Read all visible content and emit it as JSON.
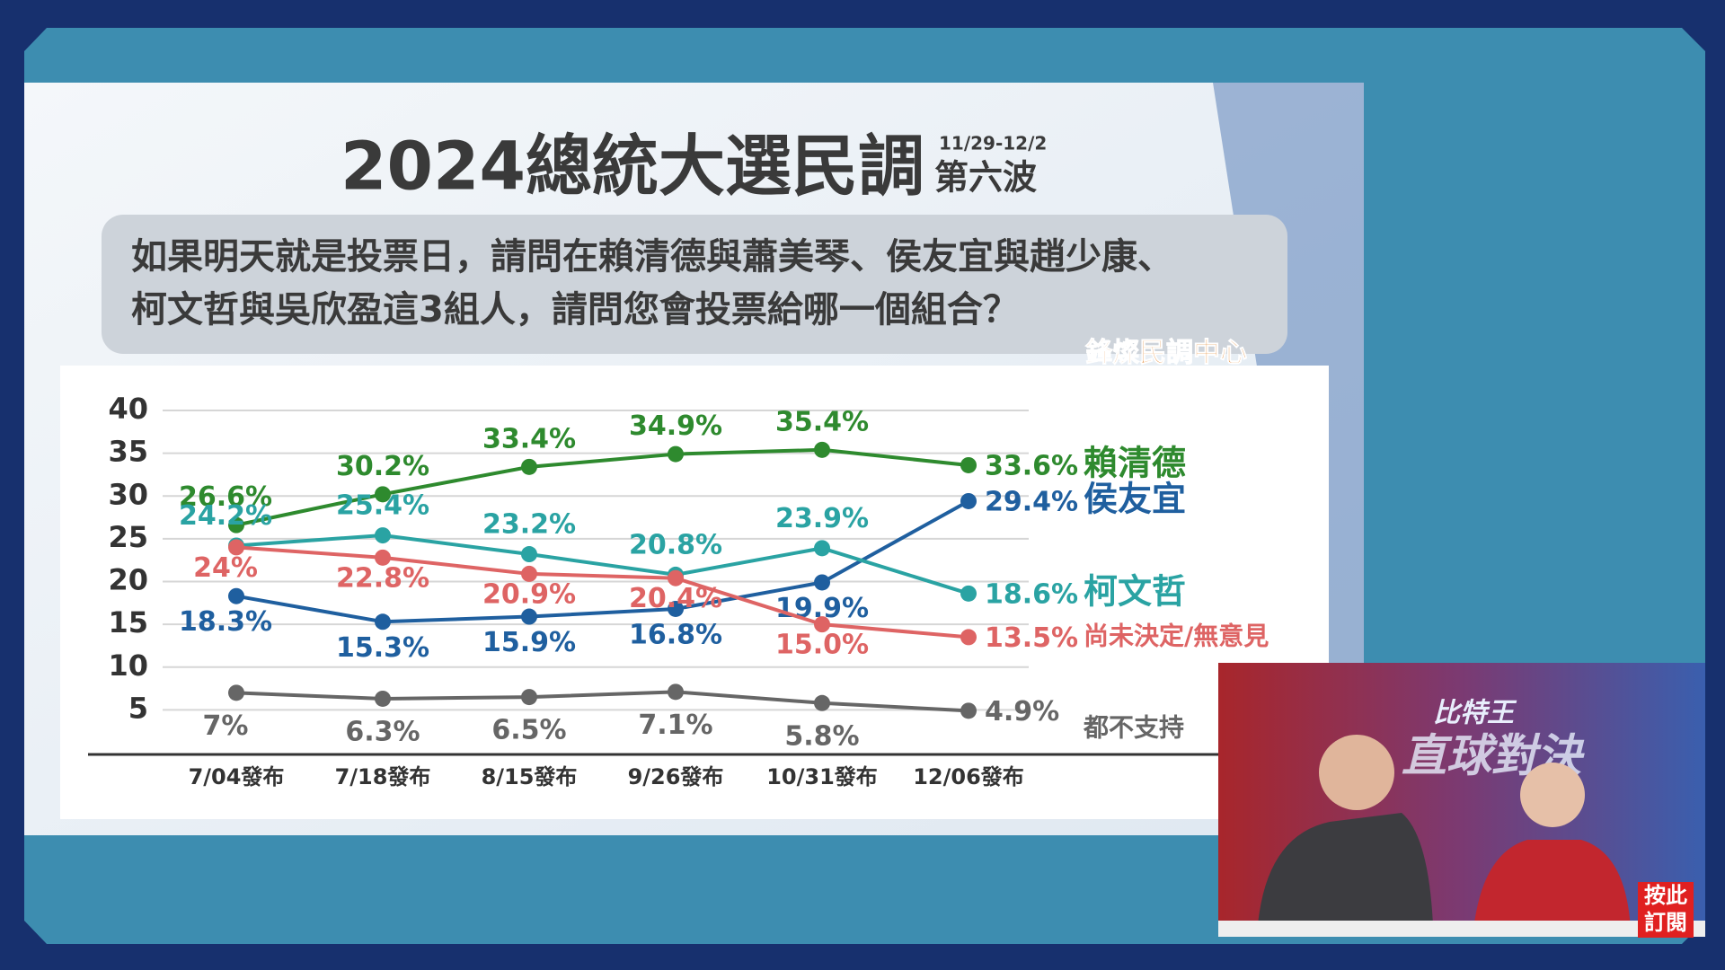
{
  "chart_data": {
    "type": "line",
    "title": "2024總統大選民調",
    "date_range": "11/29-12/2",
    "wave": "第六波",
    "question": [
      "如果明天就是投票日，請問在賴清德與蕭美琴、侯友宜與趙少康、",
      "柯文哲與吳欣盈這3組人，請問您會投票給哪一個組合？"
    ],
    "source": "鋒燦民調中心",
    "categories": [
      "7/04發布",
      "7/18發布",
      "8/15發布",
      "9/26發布",
      "10/31發布",
      "12/06發布"
    ],
    "series": [
      {
        "name": "賴清德",
        "color": "#2e8a2e",
        "values": [
          26.6,
          30.2,
          33.4,
          34.9,
          35.4,
          33.6
        ],
        "value_labels": [
          "26.6%",
          "30.2%",
          "33.4%",
          "34.9%",
          "35.4%",
          "33.6%"
        ]
      },
      {
        "name": "侯友宜",
        "color": "#1f5f9f",
        "values": [
          18.3,
          15.3,
          15.9,
          16.8,
          19.9,
          29.4
        ],
        "value_labels": [
          "18.3%",
          "15.3%",
          "15.9%",
          "16.8%",
          "19.9%",
          "29.4%"
        ]
      },
      {
        "name": "柯文哲",
        "color": "#2aa3a3",
        "values": [
          24.2,
          25.4,
          23.2,
          20.8,
          23.9,
          18.6
        ],
        "value_labels": [
          "24.2%",
          "25.4%",
          "23.2%",
          "20.8%",
          "23.9%",
          "18.6%"
        ]
      },
      {
        "name": "尚未決定/無意見",
        "color": "#de6464",
        "values": [
          24,
          22.8,
          20.9,
          20.4,
          15.0,
          13.5
        ],
        "value_labels": [
          "24%",
          "22.8%",
          "20.9%",
          "20.4%",
          "15.0%",
          "13.5%"
        ]
      },
      {
        "name": "都不支持",
        "color": "#666666",
        "values": [
          7,
          6.3,
          6.5,
          7.1,
          5.8,
          4.9
        ],
        "value_labels": [
          "7%",
          "6.3%",
          "6.5%",
          "7.1%",
          "5.8%",
          "4.9%"
        ]
      }
    ],
    "ylim": [
      0,
      40
    ],
    "yticks": [
      5,
      10,
      15,
      20,
      25,
      30,
      35,
      40
    ],
    "grid": true
  },
  "overlay": {
    "show_name": [
      "比特王",
      "直球對決"
    ],
    "subscribe": [
      "按此",
      "訂閱"
    ]
  }
}
